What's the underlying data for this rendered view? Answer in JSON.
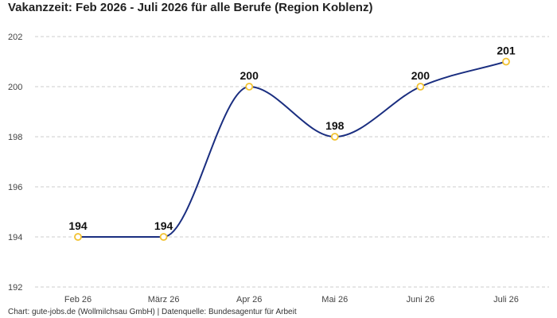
{
  "title": "Vakanzzeit: Feb 2026 - Juli 2026 für alle Berufe (Region Koblenz)",
  "footer": "Chart: gute-jobs.de (Wollmilchsau GmbH) | Datenquelle: Bundesagentur für Arbeit",
  "colors": {
    "line": "#1a2e80",
    "marker_stroke": "#f2c230",
    "marker_fill": "#ffffff",
    "grid": "#cccccc"
  },
  "chart_data": {
    "type": "line",
    "title": "Vakanzzeit: Feb 2026 - Juli 2026 für alle Berufe (Region Koblenz)",
    "categories": [
      "Feb 26",
      "März 26",
      "Apr 26",
      "Mai 26",
      "Juni 26",
      "Juli 26"
    ],
    "series": [
      {
        "values": [
          194,
          194,
          200,
          198,
          200,
          201
        ],
        "labels": [
          "194",
          "194",
          "200",
          "198",
          "200",
          "201"
        ]
      }
    ],
    "ylim": [
      192,
      202
    ],
    "yticks": [
      192,
      194,
      196,
      198,
      200,
      202
    ],
    "ytick_labels": [
      "192",
      "194",
      "196",
      "198",
      "200",
      "202"
    ],
    "grid": true,
    "smooth": true,
    "xlabel": "",
    "ylabel": ""
  }
}
